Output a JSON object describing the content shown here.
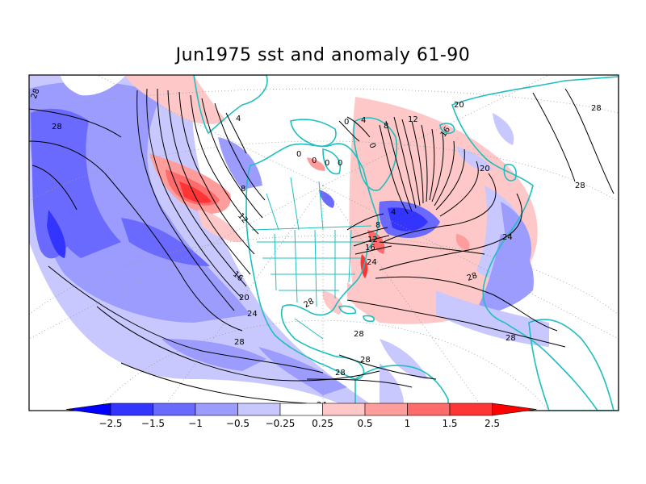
{
  "title": "Jun1975 sst and anomaly 61-90",
  "colorbar": {
    "levels": [
      "−2.5",
      "−1.5",
      "−1",
      "−0.5",
      "−0.25",
      "0.25",
      "0.5",
      "1",
      "1.5",
      "2.5"
    ],
    "colors": [
      "#0000ff",
      "#3434ff",
      "#6a6aff",
      "#9c9cff",
      "#c8c8ff",
      "#ffffff",
      "#ffc8c8",
      "#ff9c9c",
      "#ff6a6a",
      "#ff3434",
      "#ff0000"
    ]
  },
  "contour_labels": {
    "c28_a": "28",
    "c28_b": "28",
    "c4_pac": "4",
    "c8_pac": "8",
    "c12_pac": "12",
    "c16_pac": "16",
    "c20_pac": "20",
    "c24_pac": "24",
    "c28_pac": "28",
    "c28_cen": "28",
    "c28_gulf": "28",
    "c28_car": "28",
    "c28_bot": "28",
    "c28_atl": "28",
    "c28_eq": "28",
    "c24_atl": "24",
    "c24_coast": "24",
    "c20_atl": "20",
    "c20_eur": "20",
    "c16_atl": "16",
    "c16_coast": "16",
    "c12_atl": "12",
    "c12_coast": "12",
    "c8_atl": "8",
    "c8_lab": "8",
    "c4_atl": "4",
    "c4_lab": "4",
    "c0_a": "0",
    "c0_b": "0",
    "c0_c": "0",
    "c0_d": "0",
    "c0_e": "0",
    "c0_f": "0",
    "c28_nw": "28",
    "c28_ne": "28",
    "c34": "24"
  },
  "palette": {
    "land": "#ffffff",
    "coast": "#1fbfbf",
    "frame": "#000000"
  }
}
